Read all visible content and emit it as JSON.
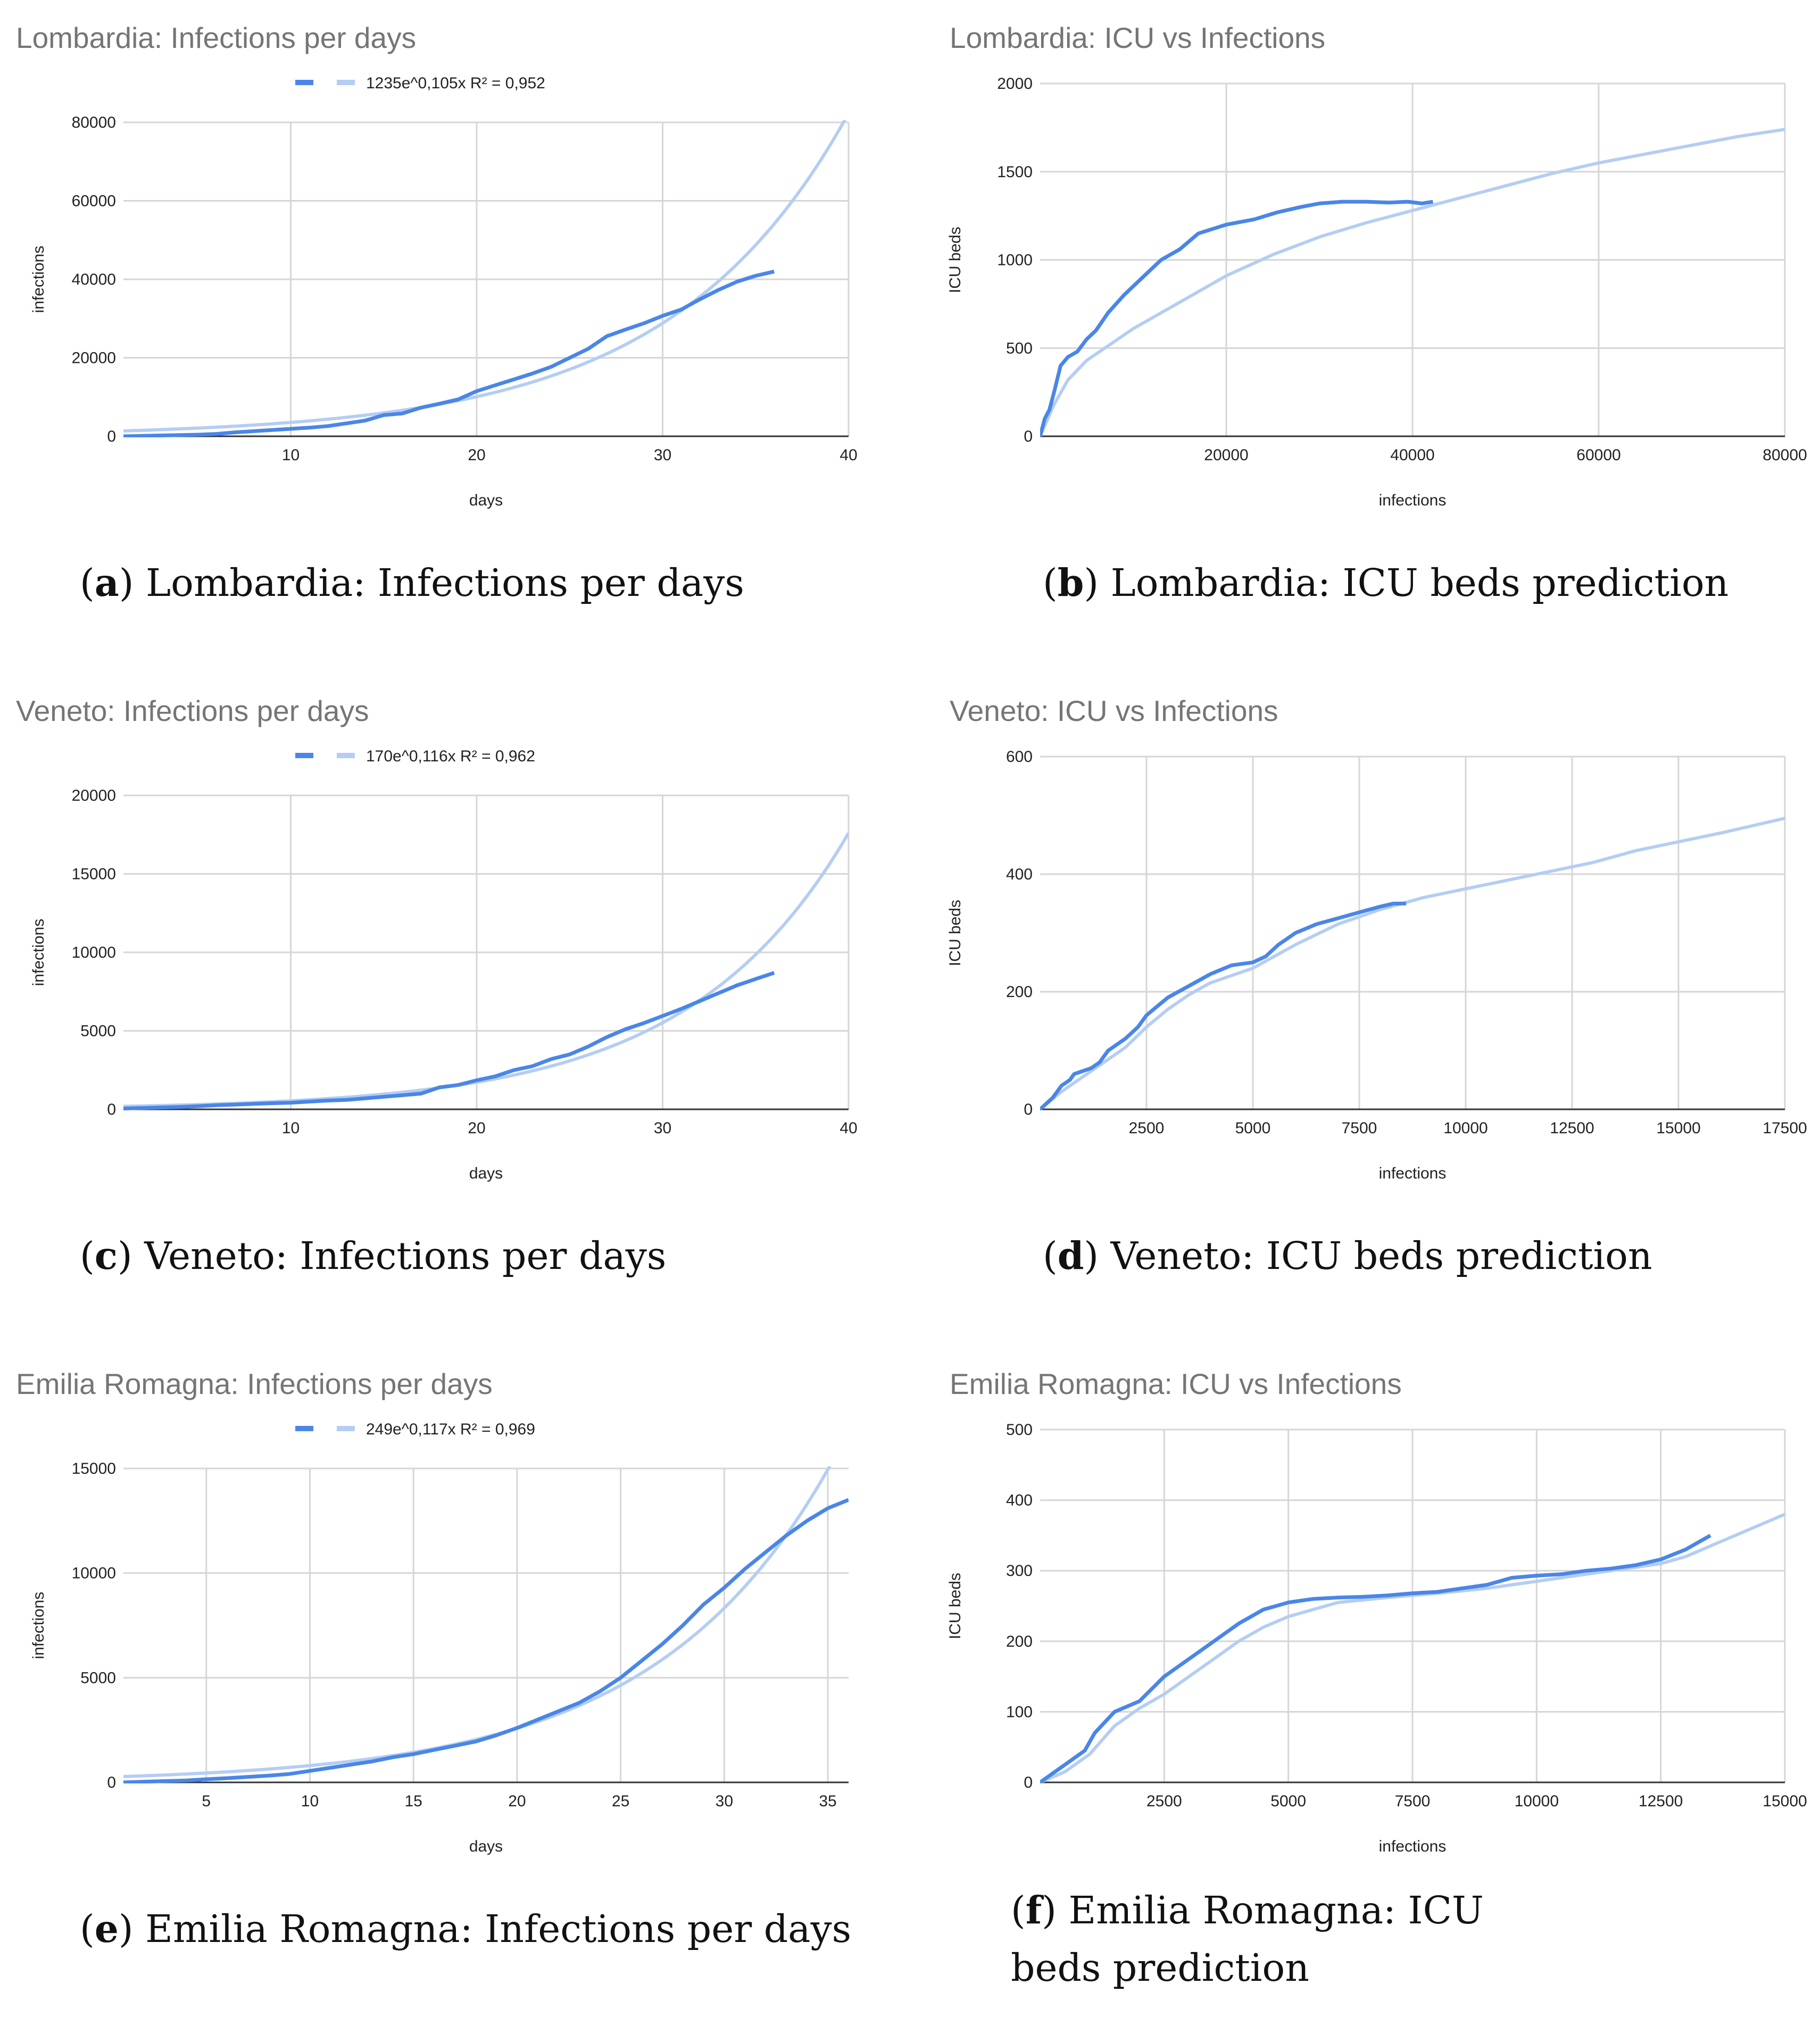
{
  "colors": {
    "actual": "#4a86e8",
    "trend": "#b4cdf3",
    "grid": "#d6d6d6",
    "axis": "#333333"
  },
  "chart_data": [
    {
      "type": "line",
      "title": "Lombardia: Infections per days",
      "xlabel": "days",
      "ylabel": "infections",
      "xlim": [
        1,
        40
      ],
      "ylim": [
        0,
        80000
      ],
      "xticks": [
        10,
        20,
        30,
        40
      ],
      "yticks": [
        0,
        20000,
        40000,
        60000,
        80000
      ],
      "legend": "1235e^0,105x R² = 0,952",
      "caption_letter": "a",
      "caption_text": " Lombardia: Infections per days",
      "series": [
        {
          "name": "infections",
          "x": [
            1,
            2,
            3,
            4,
            5,
            6,
            7,
            8,
            9,
            10,
            11,
            12,
            13,
            14,
            15,
            16,
            17,
            18,
            19,
            20,
            21,
            22,
            23,
            24,
            25,
            26,
            27,
            28,
            29,
            30,
            31,
            32,
            33,
            34,
            35,
            36
          ],
          "values": [
            0,
            100,
            200,
            300,
            400,
            600,
            1000,
            1300,
            1600,
            1900,
            2200,
            2600,
            3300,
            4000,
            5400,
            5800,
            7300,
            8300,
            9400,
            11500,
            13000,
            14500,
            16000,
            17700,
            20000,
            22300,
            25500,
            27200,
            28800,
            30700,
            32300,
            34900,
            37300,
            39400,
            40900,
            42000
          ]
        },
        {
          "name": "trend",
          "fit": {
            "a": 1235,
            "b": 0.105
          }
        }
      ]
    },
    {
      "type": "line",
      "title": "Lombardia: ICU vs Infections",
      "xlabel": "infections",
      "ylabel": "ICU beds",
      "xlim": [
        0,
        80000
      ],
      "ylim": [
        0,
        2000
      ],
      "xticks": [
        20000,
        40000,
        60000,
        80000
      ],
      "yticks": [
        0,
        500,
        1000,
        1500,
        2000
      ],
      "caption_letter": "b",
      "caption_text": " Lombardia: ICU beds prediction",
      "series": [
        {
          "name": "ICU beds",
          "x": [
            0,
            500,
            1000,
            1500,
            2200,
            3000,
            4000,
            5000,
            6000,
            7300,
            9000,
            11000,
            13000,
            15000,
            17000,
            20000,
            23000,
            25500,
            28000,
            30000,
            32500,
            35000,
            37500,
            39500,
            41000,
            42200
          ],
          "values": [
            0,
            100,
            150,
            250,
            400,
            450,
            480,
            550,
            600,
            700,
            800,
            900,
            1000,
            1060,
            1150,
            1200,
            1230,
            1270,
            1300,
            1320,
            1330,
            1330,
            1325,
            1330,
            1320,
            1330
          ]
        },
        {
          "name": "trend",
          "x": [
            0,
            1500,
            3000,
            5000,
            7500,
            10000,
            15000,
            20000,
            25000,
            30000,
            35000,
            40000,
            45000,
            50000,
            55000,
            60000,
            65000,
            70000,
            75000,
            80000
          ],
          "values": [
            0,
            180,
            320,
            430,
            520,
            610,
            760,
            910,
            1030,
            1130,
            1210,
            1280,
            1350,
            1420,
            1490,
            1550,
            1600,
            1650,
            1700,
            1740
          ]
        }
      ]
    },
    {
      "type": "line",
      "title": "Veneto: Infections per days",
      "xlabel": "days",
      "ylabel": "infections",
      "xlim": [
        1,
        40
      ],
      "ylim": [
        0,
        20000
      ],
      "xticks": [
        10,
        20,
        30,
        40
      ],
      "yticks": [
        0,
        5000,
        10000,
        15000,
        20000
      ],
      "legend": "170e^0,116x R² = 0,962",
      "caption_letter": "c",
      "caption_text": " Veneto: Infections per days",
      "series": [
        {
          "name": "infections",
          "x": [
            1,
            2,
            3,
            4,
            5,
            6,
            7,
            8,
            9,
            10,
            11,
            12,
            13,
            14,
            15,
            16,
            17,
            18,
            19,
            20,
            21,
            22,
            23,
            24,
            25,
            26,
            27,
            28,
            29,
            30,
            31,
            32,
            33,
            34,
            35,
            36
          ],
          "values": [
            50,
            80,
            120,
            150,
            200,
            260,
            300,
            350,
            390,
            420,
            490,
            560,
            600,
            700,
            800,
            900,
            1000,
            1400,
            1550,
            1850,
            2100,
            2500,
            2750,
            3200,
            3500,
            4000,
            4600,
            5100,
            5500,
            5950,
            6400,
            6900,
            7400,
            7900,
            8300,
            8700
          ]
        },
        {
          "name": "trend",
          "fit": {
            "a": 170,
            "b": 0.116
          }
        }
      ]
    },
    {
      "type": "line",
      "title": "Veneto: ICU vs Infections",
      "xlabel": "infections",
      "ylabel": "ICU beds",
      "xlim": [
        0,
        17500
      ],
      "ylim": [
        0,
        600
      ],
      "xticks": [
        2500,
        5000,
        7500,
        10000,
        12500,
        15000,
        17500
      ],
      "yticks": [
        0,
        200,
        400,
        600
      ],
      "caption_letter": "d",
      "caption_text": " Veneto: ICU beds prediction",
      "series": [
        {
          "name": "ICU beds",
          "x": [
            0,
            150,
            300,
            400,
            500,
            700,
            800,
            1000,
            1200,
            1400,
            1600,
            1800,
            2000,
            2300,
            2500,
            3000,
            3500,
            4000,
            4500,
            5000,
            5300,
            5600,
            6000,
            6500,
            7000,
            7500,
            8000,
            8300,
            8600
          ],
          "values": [
            0,
            10,
            20,
            30,
            40,
            50,
            60,
            65,
            70,
            80,
            100,
            110,
            120,
            140,
            160,
            190,
            210,
            230,
            245,
            250,
            260,
            280,
            300,
            315,
            325,
            335,
            345,
            350,
            350
          ]
        },
        {
          "name": "trend",
          "x": [
            0,
            500,
            1000,
            1500,
            2000,
            2500,
            3000,
            3500,
            4000,
            5000,
            6000,
            7000,
            8000,
            9000,
            10000,
            11000,
            12000,
            13000,
            14000,
            15000,
            16000,
            17800
          ],
          "values": [
            0,
            30,
            55,
            80,
            105,
            140,
            170,
            195,
            215,
            240,
            280,
            315,
            340,
            360,
            375,
            390,
            405,
            420,
            440,
            455,
            470,
            500
          ]
        }
      ]
    },
    {
      "type": "line",
      "title": "Emilia Romagna: Infections per days",
      "xlabel": "days",
      "ylabel": "infections",
      "xlim": [
        1,
        36
      ],
      "ylim": [
        0,
        15000
      ],
      "xticks": [
        5,
        10,
        15,
        20,
        25,
        30,
        35
      ],
      "yticks": [
        0,
        5000,
        10000,
        15000
      ],
      "legend": "249e^0,117x R² = 0,969",
      "caption_letter": "e",
      "caption_text": " Emilia Romagna: Infections per days",
      "series": [
        {
          "name": "infections",
          "x": [
            1,
            2,
            3,
            4,
            5,
            6,
            7,
            8,
            9,
            10,
            11,
            12,
            13,
            14,
            15,
            16,
            17,
            18,
            19,
            20,
            21,
            22,
            23,
            24,
            25,
            26,
            27,
            28,
            29,
            30,
            31,
            32,
            33,
            34,
            35,
            36
          ],
          "values": [
            0,
            30,
            60,
            90,
            150,
            200,
            260,
            320,
            400,
            550,
            700,
            850,
            1000,
            1200,
            1350,
            1550,
            1750,
            1950,
            2250,
            2600,
            3000,
            3400,
            3800,
            4350,
            5000,
            5800,
            6600,
            7500,
            8500,
            9300,
            10200,
            11000,
            11800,
            12500,
            13100,
            13500
          ]
        },
        {
          "name": "trend",
          "fit": {
            "a": 249,
            "b": 0.117
          }
        }
      ]
    },
    {
      "type": "line",
      "title": "Emilia Romagna: ICU vs Infections",
      "xlabel": "infections",
      "ylabel": "ICU beds",
      "xlim": [
        0,
        15000
      ],
      "ylim": [
        0,
        500
      ],
      "xticks": [
        2500,
        5000,
        7500,
        10000,
        12500,
        15000
      ],
      "yticks": [
        0,
        100,
        200,
        300,
        400,
        500
      ],
      "caption_letter": "f",
      "caption_text": " Emilia Romagna: ICU beds prediction",
      "series": [
        {
          "name": "ICU beds",
          "x": [
            0,
            200,
            400,
            500,
            700,
            900,
            1100,
            1300,
            1500,
            2000,
            2500,
            3000,
            3500,
            4000,
            4500,
            5000,
            5500,
            6000,
            6500,
            7000,
            7500,
            8000,
            8500,
            9000,
            9500,
            10000,
            10500,
            11000,
            11500,
            12000,
            12500,
            13000,
            13500
          ],
          "values": [
            0,
            10,
            20,
            25,
            35,
            45,
            70,
            85,
            100,
            115,
            150,
            175,
            200,
            225,
            245,
            255,
            260,
            262,
            263,
            265,
            268,
            270,
            275,
            280,
            290,
            293,
            295,
            300,
            303,
            308,
            316,
            330,
            350
          ]
        },
        {
          "name": "trend",
          "x": [
            0,
            500,
            1000,
            1500,
            2000,
            2500,
            3000,
            3500,
            4000,
            4500,
            5000,
            5500,
            6000,
            7000,
            8000,
            9000,
            10000,
            11000,
            12000,
            12500,
            13000,
            13500,
            14000,
            14500,
            15000
          ],
          "values": [
            0,
            15,
            40,
            80,
            105,
            125,
            150,
            175,
            200,
            220,
            235,
            245,
            255,
            262,
            268,
            275,
            285,
            295,
            305,
            310,
            320,
            335,
            350,
            365,
            380
          ]
        }
      ]
    }
  ]
}
